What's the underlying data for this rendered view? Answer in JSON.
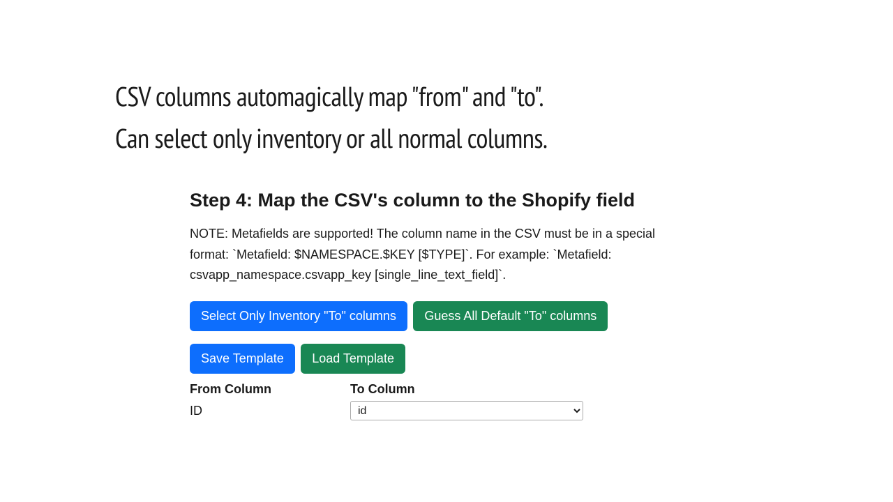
{
  "caption": {
    "line1": "CSV columns automagically map \"from\" and \"to\".",
    "line2": "Can select only inventory or all normal columns."
  },
  "panel": {
    "heading": "Step 4: Map the CSV's column to the Shopify field",
    "note": "NOTE: Metafields are supported! The column name in the CSV must be in a special format: `Metafield: $NAMESPACE.$KEY [$TYPE]`. For example: `Metafield: csvapp_namespace.csvapp_key [single_line_text_field]`.",
    "buttons": {
      "select_inventory": "Select Only Inventory \"To\" columns",
      "guess_all": "Guess All Default \"To\" columns",
      "save_template": "Save Template",
      "load_template": "Load Template"
    },
    "columns": {
      "from_label": "From Column",
      "to_label": "To Column"
    },
    "mapping": {
      "from_value": "ID",
      "to_value": "id"
    }
  },
  "colors": {
    "blue_button": "#0d6efd",
    "green_button": "#198754",
    "text": "#1a1a1a",
    "background": "#ffffff"
  }
}
